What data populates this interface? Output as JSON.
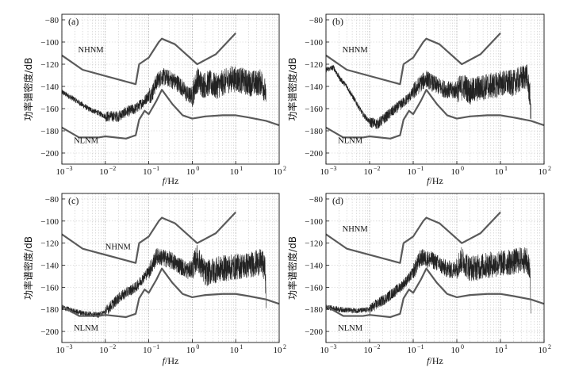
{
  "chart_data": [
    {
      "type": "line",
      "panel_label": "(a)",
      "xlabel_italic": "f",
      "xlabel_rest": "/Hz",
      "ylabel": "功率谱密度/dB",
      "xscale": "log",
      "xlim": [
        0.001,
        100
      ],
      "ylim": [
        -210,
        -75
      ],
      "xticks": [
        {
          "base": "10",
          "exp": "−3"
        },
        {
          "base": "10",
          "exp": "−2"
        },
        {
          "base": "10",
          "exp": "−1"
        },
        {
          "base": "10",
          "exp": "0"
        },
        {
          "base": "10",
          "exp": "1"
        },
        {
          "base": "10",
          "exp": "2"
        }
      ],
      "yticks": [
        "−80",
        "−100",
        "−120",
        "−140",
        "−160",
        "−180",
        "−200"
      ],
      "grid": true,
      "annotations": [
        "NHNM",
        "NLNM"
      ],
      "series": [
        {
          "name": "NHNM",
          "x": [
            0.001,
            0.003,
            0.05,
            0.06,
            0.1,
            0.17,
            0.2,
            0.4,
            1.3,
            3.5,
            10
          ],
          "y": [
            -112,
            -125,
            -138,
            -120,
            -114,
            -100,
            -97,
            -102,
            -120,
            -111,
            -92
          ]
        },
        {
          "name": "NLNM",
          "x": [
            0.001,
            0.0025,
            0.007,
            0.01,
            0.03,
            0.05,
            0.06,
            0.08,
            0.1,
            0.15,
            0.2,
            0.35,
            0.6,
            1,
            2,
            5,
            10,
            20,
            50,
            100
          ],
          "y": [
            -177,
            -186,
            -186,
            -185,
            -187,
            -184,
            -170,
            -162,
            -165,
            -153,
            -143,
            -156,
            -166,
            -169,
            -167,
            -166,
            -166,
            -168,
            -171,
            -175
          ]
        },
        {
          "name": "PSD",
          "x": [
            0.001,
            0.002,
            0.004,
            0.007,
            0.01,
            0.02,
            0.03,
            0.05,
            0.08,
            0.1,
            0.12,
            0.15,
            0.2,
            0.3,
            0.5,
            0.8,
            1.0,
            1.3,
            1.8,
            2.5,
            3.5,
            5,
            8,
            12,
            20,
            30,
            40,
            48,
            50
          ],
          "y": [
            -145,
            -152,
            -160,
            -164,
            -167,
            -167,
            -163,
            -160,
            -153,
            -148,
            -146,
            -136,
            -131,
            -133,
            -138,
            -148,
            -148,
            -134,
            -139,
            -137,
            -140,
            -137,
            -133,
            -134,
            -137,
            -137,
            -136,
            -145,
            -157
          ]
        }
      ]
    },
    {
      "type": "line",
      "panel_label": "(b)",
      "xlabel_italic": "f",
      "xlabel_rest": "/Hz",
      "ylabel": "功率谱密度/dB",
      "xscale": "log",
      "xlim": [
        0.001,
        100
      ],
      "ylim": [
        -210,
        -75
      ],
      "xticks": [
        {
          "base": "10",
          "exp": "−3"
        },
        {
          "base": "10",
          "exp": "−2"
        },
        {
          "base": "10",
          "exp": "−1"
        },
        {
          "base": "10",
          "exp": "0"
        },
        {
          "base": "10",
          "exp": "1"
        },
        {
          "base": "10",
          "exp": "2"
        }
      ],
      "yticks": [
        "−80",
        "−100",
        "−120",
        "−140",
        "−160",
        "−180",
        "−200"
      ],
      "grid": true,
      "annotations": [
        "NHNM",
        "NLNM"
      ],
      "series": [
        {
          "name": "NHNM",
          "x": [
            0.001,
            0.003,
            0.05,
            0.06,
            0.1,
            0.17,
            0.2,
            0.4,
            1.3,
            3.5,
            10
          ],
          "y": [
            -112,
            -125,
            -138,
            -120,
            -114,
            -100,
            -97,
            -102,
            -120,
            -111,
            -92
          ]
        },
        {
          "name": "NLNM",
          "x": [
            0.001,
            0.0025,
            0.007,
            0.01,
            0.03,
            0.05,
            0.06,
            0.08,
            0.1,
            0.15,
            0.2,
            0.35,
            0.6,
            1,
            2,
            5,
            10,
            20,
            50,
            100
          ],
          "y": [
            -177,
            -186,
            -186,
            -185,
            -187,
            -184,
            -170,
            -162,
            -165,
            -153,
            -143,
            -156,
            -166,
            -169,
            -167,
            -166,
            -166,
            -168,
            -171,
            -175
          ]
        },
        {
          "name": "PSD",
          "x": [
            0.001,
            0.0015,
            0.002,
            0.003,
            0.005,
            0.007,
            0.01,
            0.015,
            0.02,
            0.03,
            0.05,
            0.08,
            0.1,
            0.15,
            0.2,
            0.3,
            0.5,
            0.8,
            1,
            1.5,
            2,
            3,
            5,
            8,
            10,
            20,
            30,
            40,
            48,
            50
          ],
          "y": [
            -125,
            -123,
            -132,
            -140,
            -155,
            -165,
            -172,
            -174,
            -170,
            -164,
            -157,
            -150,
            -145,
            -137,
            -133,
            -138,
            -142,
            -144,
            -143,
            -140,
            -145,
            -142,
            -140,
            -139,
            -137,
            -137,
            -133,
            -130,
            -150,
            -170
          ]
        }
      ]
    },
    {
      "type": "line",
      "panel_label": "(c)",
      "xlabel_italic": "f",
      "xlabel_rest": "/Hz",
      "ylabel": "功率谱密度/dB",
      "xscale": "log",
      "xlim": [
        0.001,
        100
      ],
      "ylim": [
        -210,
        -75
      ],
      "xticks": [
        {
          "base": "10",
          "exp": "−3"
        },
        {
          "base": "10",
          "exp": "−2"
        },
        {
          "base": "10",
          "exp": "−1"
        },
        {
          "base": "10",
          "exp": "0"
        },
        {
          "base": "10",
          "exp": "1"
        },
        {
          "base": "10",
          "exp": "2"
        }
      ],
      "yticks": [
        "−80",
        "−100",
        "−120",
        "−140",
        "−160",
        "−180",
        "−200"
      ],
      "grid": true,
      "annotations": [
        "NHNM",
        "NLNM"
      ],
      "series": [
        {
          "name": "NHNM",
          "x": [
            0.001,
            0.003,
            0.05,
            0.06,
            0.1,
            0.17,
            0.2,
            0.4,
            1.3,
            3.5,
            10
          ],
          "y": [
            -112,
            -125,
            -138,
            -120,
            -114,
            -100,
            -97,
            -102,
            -120,
            -111,
            -92
          ]
        },
        {
          "name": "NLNM",
          "x": [
            0.001,
            0.0025,
            0.007,
            0.01,
            0.03,
            0.05,
            0.06,
            0.08,
            0.1,
            0.15,
            0.2,
            0.35,
            0.6,
            1,
            2,
            5,
            10,
            20,
            50,
            100
          ],
          "y": [
            -177,
            -186,
            -186,
            -185,
            -187,
            -184,
            -170,
            -162,
            -165,
            -153,
            -143,
            -156,
            -166,
            -169,
            -167,
            -166,
            -166,
            -168,
            -171,
            -175
          ]
        },
        {
          "name": "PSD",
          "x": [
            0.001,
            0.002,
            0.004,
            0.007,
            0.01,
            0.015,
            0.02,
            0.03,
            0.05,
            0.08,
            0.1,
            0.12,
            0.15,
            0.2,
            0.3,
            0.5,
            0.8,
            1.0,
            1.3,
            2,
            3,
            5,
            8,
            12,
            20,
            30,
            40,
            48,
            50
          ],
          "y": [
            -178,
            -182,
            -184,
            -185,
            -182,
            -175,
            -170,
            -165,
            -160,
            -150,
            -145,
            -140,
            -132,
            -133,
            -135,
            -140,
            -145,
            -143,
            -133,
            -148,
            -145,
            -143,
            -142,
            -141,
            -140,
            -138,
            -137,
            -145,
            -178
          ]
        }
      ]
    },
    {
      "type": "line",
      "panel_label": "(d)",
      "xlabel_italic": "f",
      "xlabel_rest": "/Hz",
      "ylabel": "功率谱密度/dB",
      "xscale": "log",
      "xlim": [
        0.001,
        100
      ],
      "ylim": [
        -210,
        -75
      ],
      "xticks": [
        {
          "base": "10",
          "exp": "−3"
        },
        {
          "base": "10",
          "exp": "−2"
        },
        {
          "base": "10",
          "exp": "−1"
        },
        {
          "base": "10",
          "exp": "0"
        },
        {
          "base": "10",
          "exp": "1"
        },
        {
          "base": "10",
          "exp": "2"
        }
      ],
      "yticks": [
        "−80",
        "−100",
        "−120",
        "−140",
        "−160",
        "−180",
        "−200"
      ],
      "grid": true,
      "annotations": [
        "NHNM",
        "NLNM"
      ],
      "series": [
        {
          "name": "NHNM",
          "x": [
            0.001,
            0.003,
            0.05,
            0.06,
            0.1,
            0.17,
            0.2,
            0.4,
            1.3,
            3.5,
            10
          ],
          "y": [
            -112,
            -125,
            -138,
            -120,
            -114,
            -100,
            -97,
            -102,
            -120,
            -111,
            -92
          ]
        },
        {
          "name": "NLNM",
          "x": [
            0.001,
            0.0025,
            0.007,
            0.01,
            0.03,
            0.05,
            0.06,
            0.08,
            0.1,
            0.15,
            0.2,
            0.35,
            0.6,
            1,
            2,
            5,
            10,
            20,
            50,
            100
          ],
          "y": [
            -177,
            -186,
            -186,
            -185,
            -187,
            -184,
            -170,
            -162,
            -165,
            -153,
            -143,
            -156,
            -166,
            -169,
            -167,
            -166,
            -166,
            -168,
            -171,
            -175
          ]
        },
        {
          "name": "PSD",
          "x": [
            0.001,
            0.002,
            0.004,
            0.007,
            0.01,
            0.015,
            0.02,
            0.03,
            0.05,
            0.08,
            0.1,
            0.12,
            0.15,
            0.2,
            0.3,
            0.5,
            0.8,
            1.0,
            1.3,
            2,
            3,
            5,
            8,
            12,
            20,
            30,
            40,
            48,
            50
          ],
          "y": [
            -178,
            -180,
            -181,
            -181,
            -180,
            -175,
            -172,
            -167,
            -160,
            -152,
            -146,
            -140,
            -133,
            -134,
            -136,
            -142,
            -145,
            -141,
            -135,
            -143,
            -142,
            -140,
            -139,
            -138,
            -137,
            -135,
            -136,
            -145,
            -178
          ]
        }
      ]
    }
  ]
}
